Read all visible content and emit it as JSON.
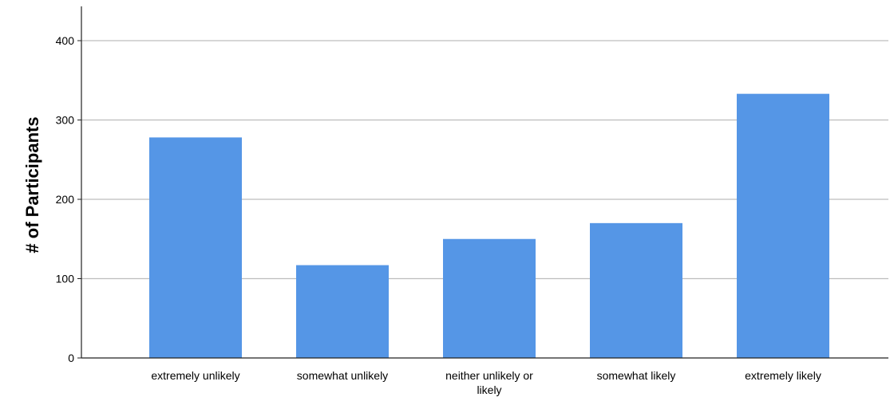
{
  "chart_data": {
    "type": "bar",
    "title": "",
    "xlabel": "",
    "ylabel": "# of Participants",
    "categories": [
      "extremely unlikely",
      "somewhat unlikely",
      "neither unlikely or likely",
      "somewhat likely",
      "extremely likely"
    ],
    "values": [
      278,
      117,
      150,
      170,
      333
    ],
    "ylim": [
      0,
      440
    ],
    "yticks": [
      0,
      100,
      200,
      300,
      400
    ],
    "grid": true,
    "bar_color": "#5596E6",
    "grid_color": "#BDBDBD",
    "axis_color": "#222222"
  }
}
